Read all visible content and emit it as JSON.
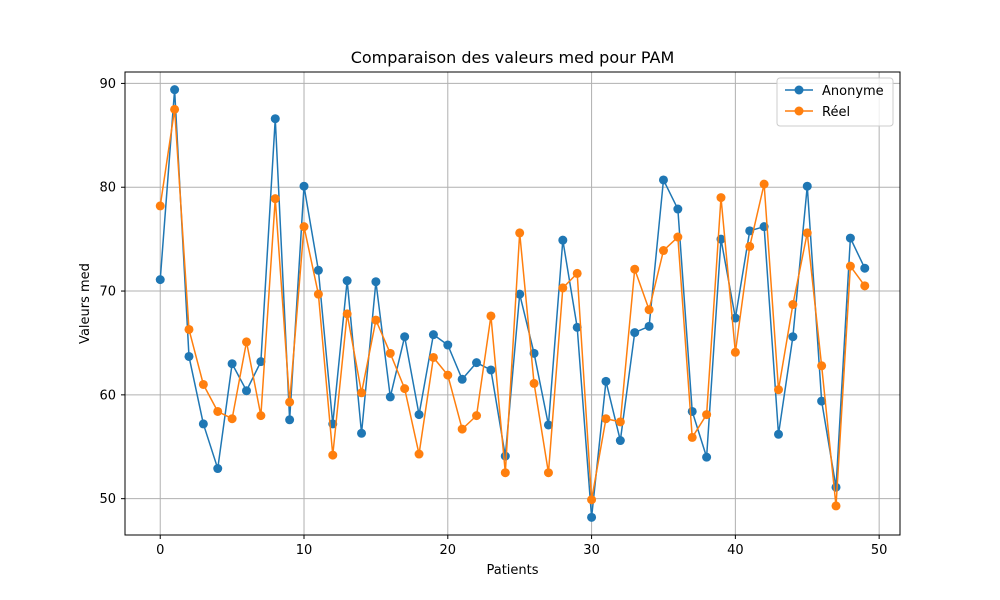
{
  "chart_data": {
    "type": "line",
    "title": "Comparaison des valeurs med pour PAM",
    "xlabel": "Patients",
    "ylabel": "Valeurs med",
    "xlim": [
      -2.45,
      51.45
    ],
    "ylim": [
      46.5,
      91.1
    ],
    "xticks": [
      0,
      10,
      20,
      30,
      40,
      50
    ],
    "yticks": [
      50,
      60,
      70,
      80,
      90
    ],
    "grid": true,
    "legend_position": "top-right",
    "x": [
      0,
      1,
      2,
      3,
      4,
      5,
      6,
      7,
      8,
      9,
      10,
      11,
      12,
      13,
      14,
      15,
      16,
      17,
      18,
      19,
      20,
      21,
      22,
      23,
      24,
      25,
      26,
      27,
      28,
      29,
      30,
      31,
      32,
      33,
      34,
      35,
      36,
      37,
      38,
      39,
      40,
      41,
      42,
      43,
      44,
      45,
      46,
      47,
      48,
      49
    ],
    "series": [
      {
        "name": "Anonyme",
        "color": "#1f77b4",
        "values": [
          71.1,
          89.4,
          63.7,
          57.2,
          52.9,
          63.0,
          60.4,
          63.2,
          86.6,
          57.6,
          80.1,
          72.0,
          57.2,
          71.0,
          56.3,
          70.9,
          59.8,
          65.6,
          58.1,
          65.8,
          64.8,
          61.5,
          63.1,
          62.4,
          54.1,
          69.7,
          64.0,
          57.1,
          74.9,
          66.5,
          48.2,
          61.3,
          55.6,
          66.0,
          66.6,
          80.7,
          77.9,
          58.4,
          54.0,
          75.0,
          67.4,
          75.8,
          76.2,
          56.2,
          65.6,
          80.1,
          59.4,
          51.1,
          75.1,
          72.2
        ]
      },
      {
        "name": "Réel",
        "color": "#ff7f0e",
        "values": [
          78.2,
          87.5,
          66.3,
          61.0,
          58.4,
          57.7,
          65.1,
          58.0,
          78.9,
          59.3,
          76.2,
          69.7,
          54.2,
          67.8,
          60.2,
          67.2,
          64.0,
          60.6,
          54.3,
          63.6,
          61.9,
          56.7,
          58.0,
          67.6,
          52.5,
          75.6,
          61.1,
          52.5,
          70.3,
          71.7,
          49.9,
          57.7,
          57.4,
          72.1,
          68.2,
          73.9,
          75.2,
          55.9,
          58.1,
          79.0,
          64.1,
          74.3,
          80.3,
          60.5,
          68.7,
          75.6,
          62.8,
          49.3,
          72.4,
          70.5
        ]
      }
    ]
  }
}
